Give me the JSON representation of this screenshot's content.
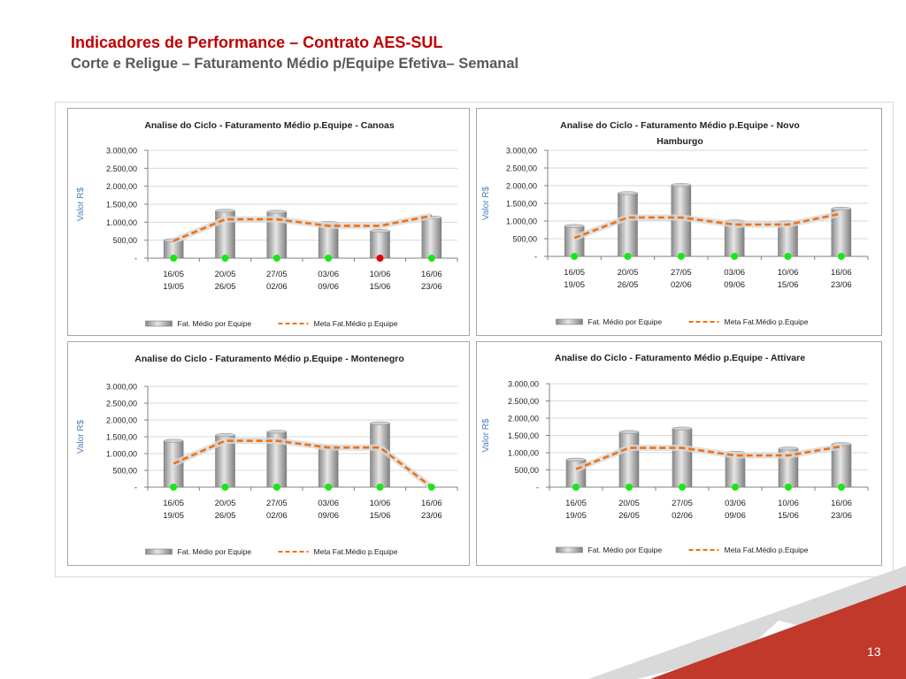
{
  "header": {
    "title": "Indicadores de Performance – Contrato AES-SUL",
    "subtitle": "Corte e Religue – Faturamento Médio p/Equipe Efetiva– Semanal"
  },
  "footer": {
    "slide_number": "13"
  },
  "colors": {
    "title": "#c00000",
    "subtitle": "#595959",
    "meta_line": "#f07010",
    "bar": "#b8b8b8",
    "status_ok": "#19e619",
    "status_bad": "#e60000",
    "axis_label": "#4f81bd",
    "footer_red": "#c0392b"
  },
  "chart_data": [
    {
      "type": "bar",
      "title_lines": [
        "Analise do Ciclo - Faturamento Médio p.Equipe - Canoas"
      ],
      "ylabel": "Valor R$",
      "yticks": [
        "3.000,00",
        "2.500,00",
        "2.000,00",
        "1.500,00",
        "1.000,00",
        "500,00",
        "-"
      ],
      "ylim": [
        0,
        3000
      ],
      "categories": [
        [
          "16/05",
          "19/05"
        ],
        [
          "20/05",
          "26/05"
        ],
        [
          "27/05",
          "02/06"
        ],
        [
          "03/06",
          "09/06"
        ],
        [
          "10/06",
          "15/06"
        ],
        [
          "16/06",
          "23/06"
        ]
      ],
      "series": [
        {
          "name": "Fat. Médio por Equipe",
          "kind": "bar",
          "values": [
            500,
            1320,
            1290,
            980,
            760,
            1130
          ]
        },
        {
          "name": "Meta Fat.Médio p.Equipe",
          "kind": "dashed-line",
          "values": [
            480,
            1080,
            1080,
            900,
            900,
            1180
          ]
        }
      ],
      "status": [
        "ok",
        "ok",
        "ok",
        "ok",
        "bad",
        "ok"
      ],
      "legend_position": "bottom",
      "grid": true
    },
    {
      "type": "bar",
      "title_lines": [
        "Analise do Ciclo - Faturamento Médio p.Equipe - Novo",
        "Hamburgo"
      ],
      "ylabel": "Valor R$",
      "yticks": [
        "3.000,00",
        "2.500,00",
        "2.000,00",
        "1.500,00",
        "1.000,00",
        "500,00",
        "-"
      ],
      "ylim": [
        0,
        3000
      ],
      "categories": [
        [
          "16/05",
          "19/05"
        ],
        [
          "20/05",
          "26/05"
        ],
        [
          "27/05",
          "02/06"
        ],
        [
          "03/06",
          "09/06"
        ],
        [
          "10/06",
          "15/06"
        ],
        [
          "16/06",
          "23/06"
        ]
      ],
      "series": [
        {
          "name": "Fat. Médio por Equipe",
          "kind": "bar",
          "values": [
            860,
            1790,
            2020,
            990,
            960,
            1350
          ]
        },
        {
          "name": "Meta Fat.Médio p.Equipe",
          "kind": "dashed-line",
          "values": [
            520,
            1100,
            1100,
            900,
            900,
            1210
          ]
        }
      ],
      "status": [
        "ok",
        "ok",
        "ok",
        "ok",
        "ok",
        "ok"
      ],
      "legend_position": "bottom",
      "grid": true
    },
    {
      "type": "bar",
      "title_lines": [
        "Analise do Ciclo - Faturamento Médio p.Equipe - Montenegro"
      ],
      "ylabel": "Valor R$",
      "yticks": [
        "3.000,00",
        "2.500,00",
        "2.000,00",
        "1.500,00",
        "1.000,00",
        "500,00",
        "-"
      ],
      "ylim": [
        0,
        3000
      ],
      "categories": [
        [
          "16/05",
          "19/05"
        ],
        [
          "20/05",
          "26/05"
        ],
        [
          "27/05",
          "02/06"
        ],
        [
          "03/06",
          "09/06"
        ],
        [
          "10/06",
          "15/06"
        ],
        [
          "16/06",
          "23/06"
        ]
      ],
      "series": [
        {
          "name": "Fat. Médio por Equipe",
          "kind": "bar",
          "values": [
            1380,
            1550,
            1650,
            1200,
            1900,
            0
          ]
        },
        {
          "name": "Meta Fat.Médio p.Equipe",
          "kind": "dashed-line",
          "values": [
            700,
            1380,
            1380,
            1180,
            1180,
            0
          ]
        }
      ],
      "status": [
        "ok",
        "ok",
        "ok",
        "ok",
        "ok",
        "ok"
      ],
      "legend_position": "bottom",
      "grid": true
    },
    {
      "type": "bar",
      "title_lines": [
        "Analise do Ciclo - Faturamento Médio p.Equipe - Attivare"
      ],
      "ylabel": "Valor R$",
      "yticks": [
        "3.000,00",
        "2.500,00",
        "2.000,00",
        "1.500,00",
        "1.000,00",
        "500,00",
        "-"
      ],
      "ylim": [
        0,
        3000
      ],
      "categories": [
        [
          "16/05",
          "19/05"
        ],
        [
          "20/05",
          "26/05"
        ],
        [
          "27/05",
          "02/06"
        ],
        [
          "03/06",
          "09/06"
        ],
        [
          "10/06",
          "15/06"
        ],
        [
          "16/06",
          "23/06"
        ]
      ],
      "series": [
        {
          "name": "Fat. Médio por Equipe",
          "kind": "bar",
          "values": [
            800,
            1600,
            1700,
            1000,
            1120,
            1250
          ]
        },
        {
          "name": "Meta Fat.Médio p.Equipe",
          "kind": "dashed-line",
          "values": [
            520,
            1140,
            1140,
            920,
            920,
            1180
          ]
        }
      ],
      "status": [
        "ok",
        "ok",
        "ok",
        "ok",
        "ok",
        "ok"
      ],
      "legend_position": "bottom",
      "grid": true
    }
  ]
}
